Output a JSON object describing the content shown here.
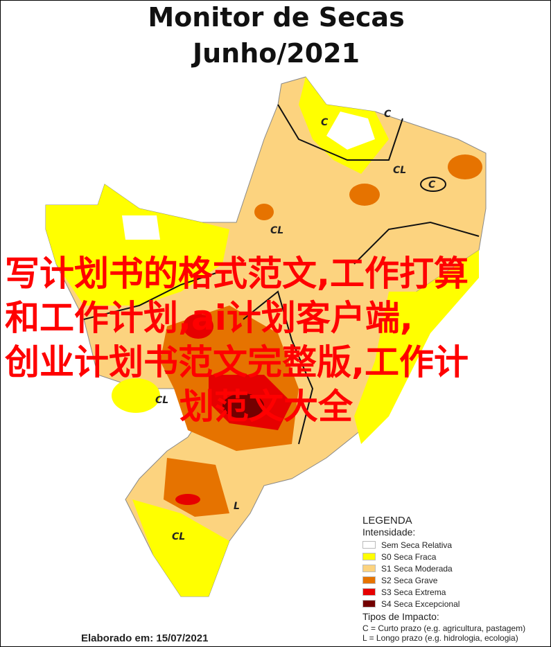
{
  "title": {
    "line1": "Monitor de Secas",
    "line2": "Junho/2021"
  },
  "map_labels": {
    "c": "C",
    "cl": "CL",
    "l": "L"
  },
  "legend": {
    "heading": "LEGENDA",
    "intensity_label": "Intensidade:",
    "items": [
      {
        "label": "Sem Seca Relativa",
        "color": "#ffffff"
      },
      {
        "label": "S0 Seca Fraca",
        "color": "#ffff00"
      },
      {
        "label": "S1 Seca Moderada",
        "color": "#fcd37f"
      },
      {
        "label": "S2 Seca Grave",
        "color": "#e67300"
      },
      {
        "label": "S3 Seca Extrema",
        "color": "#e60000"
      },
      {
        "label": "S4 Seca Excepcional",
        "color": "#730000"
      }
    ],
    "impact_label": "Tipos de Impacto:",
    "impacts": [
      "C = Curto prazo (e.g. agricultura, pastagem)",
      "L = Longo prazo (e.g. hidrologia, ecologia)"
    ]
  },
  "footer": "Elaborado em: 15/07/2021",
  "overlay_text": {
    "line1": "写计划书的格式范文,工作打算",
    "line2": "和工作计划,ai计划客户端,",
    "line3": "创业计划书范文完整版,工作计",
    "line4": "划范文大全"
  }
}
